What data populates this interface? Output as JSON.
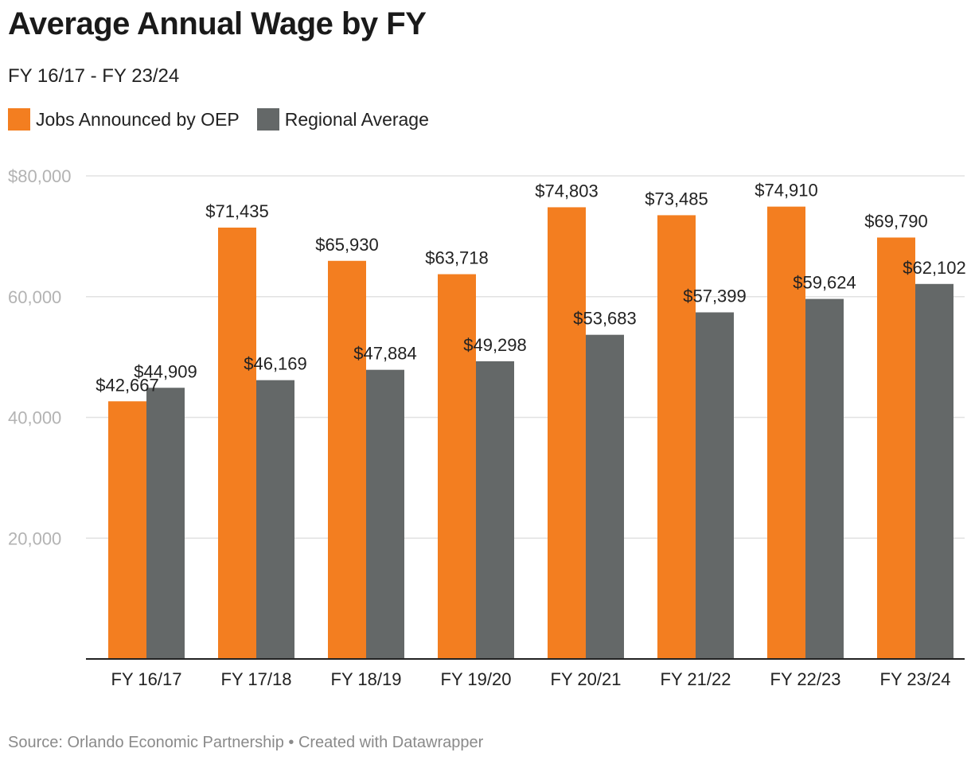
{
  "header": {
    "title": "Average Annual Wage by FY",
    "subtitle": "FY 16/17 - FY 23/24"
  },
  "footer": {
    "source": "Source: Orlando Economic Partnership • Created with Datawrapper"
  },
  "chart_data": {
    "type": "bar",
    "title": "Average Annual Wage by FY",
    "subtitle": "FY 16/17 - FY 23/24",
    "xlabel": "",
    "ylabel": "",
    "ylim": [
      0,
      80000
    ],
    "yticks": [
      20000,
      40000,
      60000,
      80000
    ],
    "ytick_labels": [
      "20,000",
      "40,000",
      "60,000",
      "$80,000"
    ],
    "grid": true,
    "legend_position": "top-left",
    "categories": [
      "FY 16/17",
      "FY 17/18",
      "FY 18/19",
      "FY 19/20",
      "FY 20/21",
      "FY 21/22",
      "FY 22/23",
      "FY 23/24"
    ],
    "series": [
      {
        "name": "Jobs Announced by OEP",
        "color": "#f37e20",
        "values": [
          42667,
          71435,
          65930,
          63718,
          74803,
          73485,
          74910,
          69790
        ],
        "labels": [
          "$42,667",
          "$71,435",
          "$65,930",
          "$63,718",
          "$74,803",
          "$73,485",
          "$74,910",
          "$69,790"
        ]
      },
      {
        "name": "Regional Average",
        "color": "#646868",
        "values": [
          44909,
          46169,
          47884,
          49298,
          53683,
          57399,
          59624,
          62102
        ],
        "labels": [
          "$44,909",
          "$46,169",
          "$47,884",
          "$49,298",
          "$53,683",
          "$57,399",
          "$59,624",
          "$62,102"
        ]
      }
    ]
  }
}
